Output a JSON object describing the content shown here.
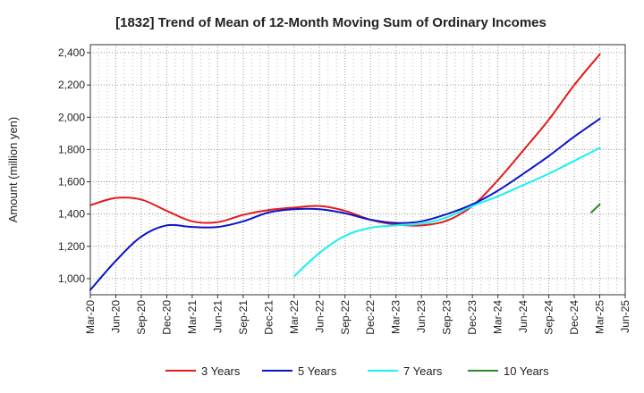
{
  "chart_data": {
    "type": "line",
    "title": "[1832]  Trend of Mean of 12-Month Moving Sum of Ordinary Incomes",
    "xlabel": "",
    "ylabel": "Amount (million yen)",
    "ylim": [
      900,
      2450
    ],
    "yticks": [
      1000,
      1200,
      1400,
      1600,
      1800,
      2000,
      2200,
      2400
    ],
    "ytick_labels": [
      "1,000",
      "1,200",
      "1,400",
      "1,600",
      "1,800",
      "2,000",
      "2,200",
      "2,400"
    ],
    "categories": [
      "Mar-20",
      "Jun-20",
      "Sep-20",
      "Dec-20",
      "Mar-21",
      "Jun-21",
      "Sep-21",
      "Dec-21",
      "Mar-22",
      "Jun-22",
      "Sep-22",
      "Dec-22",
      "Mar-23",
      "Jun-23",
      "Sep-23",
      "Dec-23",
      "Mar-24",
      "Jun-24",
      "Sep-24",
      "Dec-24",
      "Mar-25",
      "Jun-25"
    ],
    "grid": true,
    "legend_position": "bottom",
    "series": [
      {
        "name": "3 Years",
        "color": "#e41a1c",
        "values": [
          1455,
          1500,
          1490,
          1420,
          1355,
          1350,
          1395,
          1425,
          1440,
          1450,
          1420,
          1365,
          1335,
          1330,
          1360,
          1450,
          1610,
          1795,
          1985,
          2200,
          2390,
          null
        ]
      },
      {
        "name": "5 Years",
        "color": "#0a14c8",
        "values": [
          930,
          1110,
          1260,
          1330,
          1320,
          1320,
          1355,
          1410,
          1430,
          1430,
          1405,
          1365,
          1345,
          1355,
          1400,
          1460,
          1545,
          1650,
          1760,
          1880,
          1990,
          null
        ]
      },
      {
        "name": "7 Years",
        "color": "#19f0f0",
        "values": [
          null,
          null,
          null,
          null,
          null,
          null,
          null,
          null,
          1015,
          1160,
          1265,
          1315,
          1330,
          1340,
          1380,
          1450,
          1510,
          1580,
          1650,
          1730,
          1810,
          null
        ]
      },
      {
        "name": "10 Years",
        "color": "#2a8a2a",
        "values": [
          null,
          null,
          null,
          null,
          null,
          null,
          null,
          null,
          null,
          null,
          null,
          null,
          null,
          null,
          null,
          null,
          null,
          null,
          null,
          null,
          1460,
          null
        ],
        "segment_start": 1410
      }
    ]
  }
}
